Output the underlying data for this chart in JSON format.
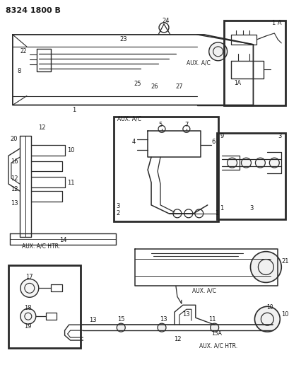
{
  "bg_color": "#ffffff",
  "line_color": "#2a2a2a",
  "text_color": "#1a1a1a",
  "figsize": [
    4.1,
    5.33
  ],
  "dpi": 100,
  "header": "8324 1800 B",
  "labels": {
    "aux_ac_top": "AUX. A/C",
    "aux_ac_mid": "AUX. A/C",
    "aux_ac_inset": "AUX. A/C",
    "aux_ac_htr_left": "AUX. A/C HTR.",
    "aux_ac_htr_bot": "AUX. A/C HTR."
  }
}
